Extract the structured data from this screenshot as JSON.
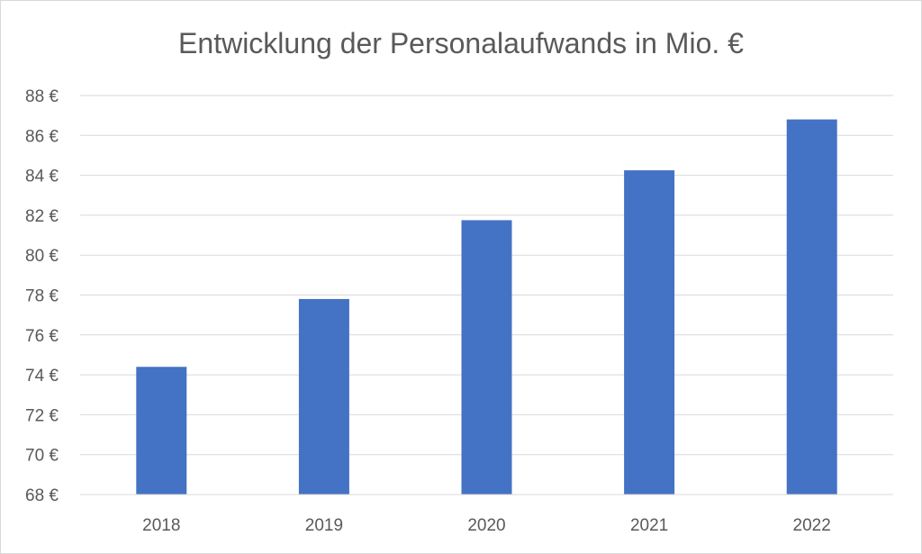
{
  "chart_data": {
    "type": "bar",
    "title": "Entwicklung der Personalaufwands in Mio. €",
    "xlabel": "",
    "ylabel": "",
    "categories": [
      "2018",
      "2019",
      "2020",
      "2021",
      "2022"
    ],
    "series": [
      {
        "values": [
          74.4,
          77.8,
          81.75,
          84.25,
          86.8
        ],
        "color": "#4472c4"
      }
    ],
    "ylim": [
      68,
      88
    ],
    "ytick_step": 2,
    "ytick_suffix": " €",
    "grid": true,
    "legend": "none"
  }
}
